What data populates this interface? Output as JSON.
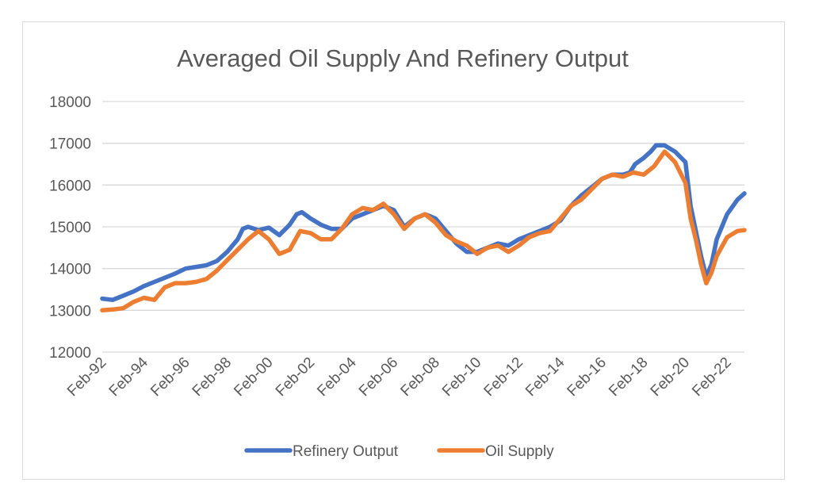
{
  "chart_data": {
    "type": "line",
    "title": "Averaged Oil Supply And Refinery Output",
    "xlabel": "",
    "ylabel": "",
    "ylim": [
      12000,
      18000
    ],
    "y_ticks": [
      12000,
      13000,
      14000,
      15000,
      16000,
      17000,
      18000
    ],
    "x_range": [
      "1992-02",
      "2022-12"
    ],
    "x_ticks": [
      "Feb-92",
      "Feb-94",
      "Feb-96",
      "Feb-98",
      "Feb-00",
      "Feb-02",
      "Feb-04",
      "Feb-06",
      "Feb-08",
      "Feb-10",
      "Feb-12",
      "Feb-14",
      "Feb-16",
      "Feb-18",
      "Feb-20",
      "Feb-22"
    ],
    "grid": "horizontal",
    "legend_position": "bottom",
    "series": [
      {
        "name": "Refinery Output",
        "color": "#4472c4",
        "points": [
          [
            "1992-02",
            13280
          ],
          [
            "1992-08",
            13250
          ],
          [
            "1993-02",
            13350
          ],
          [
            "1993-08",
            13450
          ],
          [
            "1994-02",
            13580
          ],
          [
            "1994-08",
            13680
          ],
          [
            "1995-02",
            13780
          ],
          [
            "1995-08",
            13880
          ],
          [
            "1996-02",
            14000
          ],
          [
            "1996-08",
            14040
          ],
          [
            "1997-02",
            14080
          ],
          [
            "1997-08",
            14180
          ],
          [
            "1998-02",
            14400
          ],
          [
            "1998-08",
            14700
          ],
          [
            "1998-11",
            14950
          ],
          [
            "1999-02",
            15000
          ],
          [
            "1999-08",
            14920
          ],
          [
            "2000-02",
            14980
          ],
          [
            "2000-08",
            14800
          ],
          [
            "2001-02",
            15050
          ],
          [
            "2001-06",
            15300
          ],
          [
            "2001-09",
            15350
          ],
          [
            "2002-02",
            15200
          ],
          [
            "2002-08",
            15050
          ],
          [
            "2003-02",
            14950
          ],
          [
            "2003-08",
            14950
          ],
          [
            "2004-02",
            15200
          ],
          [
            "2004-08",
            15300
          ],
          [
            "2005-02",
            15400
          ],
          [
            "2005-08",
            15500
          ],
          [
            "2006-02",
            15400
          ],
          [
            "2006-08",
            15000
          ],
          [
            "2007-02",
            15200
          ],
          [
            "2007-08",
            15300
          ],
          [
            "2008-02",
            15200
          ],
          [
            "2008-08",
            14900
          ],
          [
            "2009-02",
            14600
          ],
          [
            "2009-08",
            14400
          ],
          [
            "2010-02",
            14400
          ],
          [
            "2010-08",
            14500
          ],
          [
            "2011-02",
            14600
          ],
          [
            "2011-08",
            14550
          ],
          [
            "2012-02",
            14700
          ],
          [
            "2012-08",
            14800
          ],
          [
            "2013-02",
            14900
          ],
          [
            "2013-08",
            15000
          ],
          [
            "2014-02",
            15150
          ],
          [
            "2014-08",
            15500
          ],
          [
            "2015-02",
            15750
          ],
          [
            "2015-08",
            15950
          ],
          [
            "2016-02",
            16150
          ],
          [
            "2016-08",
            16250
          ],
          [
            "2017-02",
            16250
          ],
          [
            "2017-06",
            16300
          ],
          [
            "2017-09",
            16500
          ],
          [
            "2018-02",
            16650
          ],
          [
            "2018-06",
            16800
          ],
          [
            "2018-09",
            16950
          ],
          [
            "2019-02",
            16950
          ],
          [
            "2019-08",
            16800
          ],
          [
            "2020-02",
            16550
          ],
          [
            "2020-05",
            15500
          ],
          [
            "2020-08",
            14900
          ],
          [
            "2020-11",
            14300
          ],
          [
            "2021-02",
            13800
          ],
          [
            "2021-05",
            14100
          ],
          [
            "2021-08",
            14700
          ],
          [
            "2022-02",
            15300
          ],
          [
            "2022-08",
            15650
          ],
          [
            "2022-12",
            15800
          ]
        ]
      },
      {
        "name": "Oil Supply",
        "color": "#ed7d31",
        "points": [
          [
            "1992-02",
            13000
          ],
          [
            "1992-08",
            13020
          ],
          [
            "1993-02",
            13050
          ],
          [
            "1993-08",
            13200
          ],
          [
            "1994-02",
            13300
          ],
          [
            "1994-08",
            13250
          ],
          [
            "1995-02",
            13550
          ],
          [
            "1995-08",
            13650
          ],
          [
            "1996-02",
            13650
          ],
          [
            "1996-08",
            13680
          ],
          [
            "1997-02",
            13750
          ],
          [
            "1997-08",
            13950
          ],
          [
            "1998-02",
            14200
          ],
          [
            "1998-08",
            14450
          ],
          [
            "1999-02",
            14700
          ],
          [
            "1999-08",
            14900
          ],
          [
            "2000-02",
            14700
          ],
          [
            "2000-08",
            14350
          ],
          [
            "2001-02",
            14450
          ],
          [
            "2001-08",
            14900
          ],
          [
            "2002-02",
            14850
          ],
          [
            "2002-08",
            14700
          ],
          [
            "2003-02",
            14700
          ],
          [
            "2003-08",
            14950
          ],
          [
            "2004-02",
            15300
          ],
          [
            "2004-08",
            15450
          ],
          [
            "2005-02",
            15400
          ],
          [
            "2005-08",
            15550
          ],
          [
            "2006-02",
            15300
          ],
          [
            "2006-08",
            14950
          ],
          [
            "2007-02",
            15200
          ],
          [
            "2007-08",
            15300
          ],
          [
            "2008-02",
            15100
          ],
          [
            "2008-08",
            14800
          ],
          [
            "2009-02",
            14650
          ],
          [
            "2009-08",
            14550
          ],
          [
            "2010-02",
            14350
          ],
          [
            "2010-08",
            14500
          ],
          [
            "2011-02",
            14550
          ],
          [
            "2011-08",
            14400
          ],
          [
            "2012-02",
            14550
          ],
          [
            "2012-08",
            14750
          ],
          [
            "2013-02",
            14850
          ],
          [
            "2013-08",
            14900
          ],
          [
            "2014-02",
            15200
          ],
          [
            "2014-08",
            15500
          ],
          [
            "2015-02",
            15650
          ],
          [
            "2015-08",
            15900
          ],
          [
            "2016-02",
            16150
          ],
          [
            "2016-08",
            16250
          ],
          [
            "2017-02",
            16200
          ],
          [
            "2017-08",
            16300
          ],
          [
            "2018-02",
            16250
          ],
          [
            "2018-08",
            16450
          ],
          [
            "2019-02",
            16800
          ],
          [
            "2019-08",
            16550
          ],
          [
            "2020-02",
            16050
          ],
          [
            "2020-05",
            15200
          ],
          [
            "2020-08",
            14700
          ],
          [
            "2020-11",
            14100
          ],
          [
            "2021-02",
            13650
          ],
          [
            "2021-05",
            13900
          ],
          [
            "2021-08",
            14300
          ],
          [
            "2022-02",
            14750
          ],
          [
            "2022-08",
            14900
          ],
          [
            "2022-12",
            14920
          ]
        ]
      }
    ]
  }
}
